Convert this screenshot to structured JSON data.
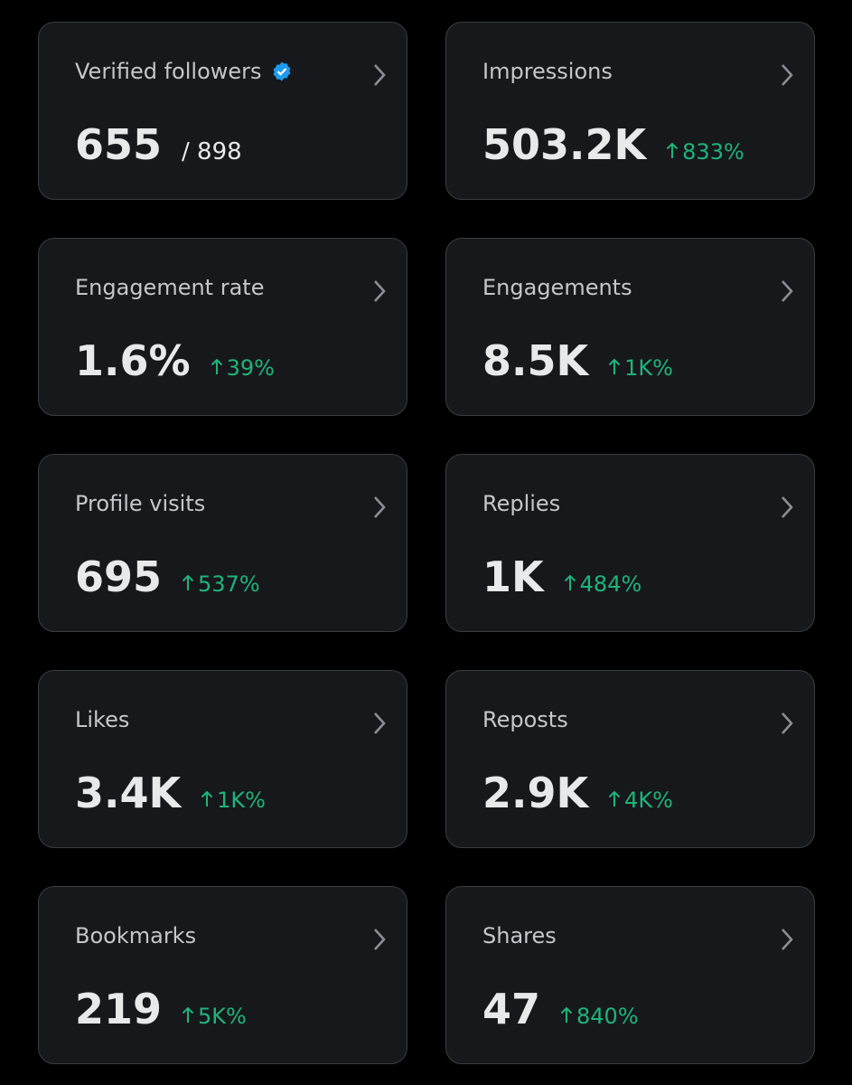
{
  "cards": [
    {
      "label": "Verified followers",
      "value": "655",
      "total": "/ 898"
    },
    {
      "label": "Impressions",
      "value": "503.2K",
      "change": "833%"
    },
    {
      "label": "Engagement rate",
      "value": "1.6%",
      "change": "39%"
    },
    {
      "label": "Engagements",
      "value": "8.5K",
      "change": "1K%"
    },
    {
      "label": "Profile visits",
      "value": "695",
      "change": "537%"
    },
    {
      "label": "Replies",
      "value": "1K",
      "change": "484%"
    },
    {
      "label": "Likes",
      "value": "3.4K",
      "change": "1K%"
    },
    {
      "label": "Reposts",
      "value": "2.9K",
      "change": "4K%"
    },
    {
      "label": "Bookmarks",
      "value": "219",
      "change": "5K%"
    },
    {
      "label": "Shares",
      "value": "47",
      "change": "840%"
    }
  ]
}
